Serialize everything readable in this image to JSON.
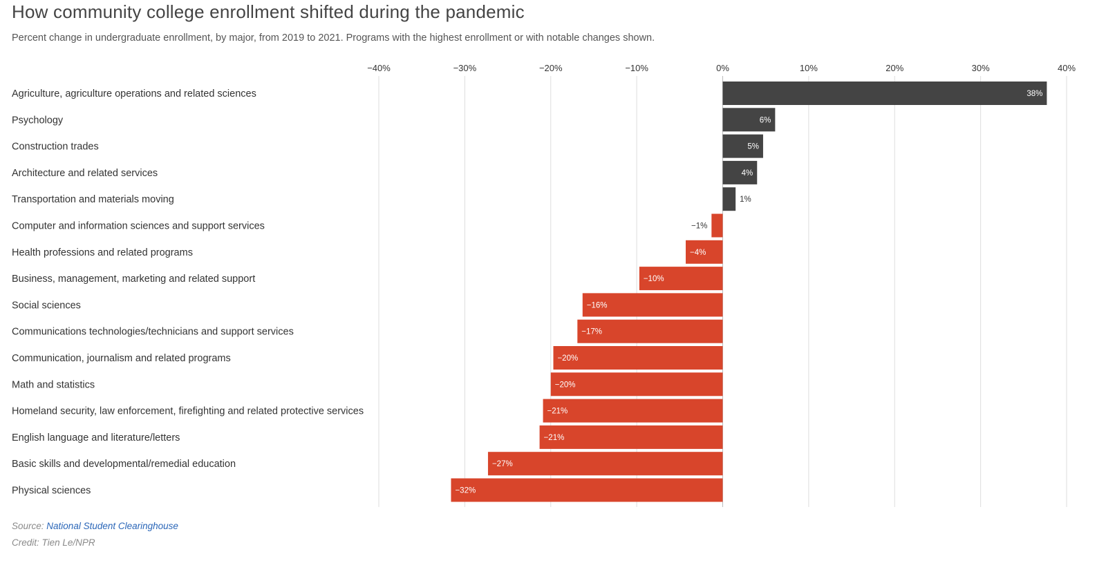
{
  "title": "How community college enrollment shifted during the pandemic",
  "subtitle": "Percent change in undergraduate enrollment, by major, from 2019 to 2021. Programs with the highest enrollment or with notable changes shown.",
  "footer": {
    "source_prefix": "Source:",
    "source_link": "National Student Clearinghouse",
    "credit": "Credit: Tien Le/NPR"
  },
  "colors": {
    "positive": "#444444",
    "negative": "#d8452b",
    "grid": "#dddddd",
    "label": "#333333"
  },
  "chart_data": {
    "type": "bar",
    "orientation": "horizontal",
    "xlim": [
      -40,
      40
    ],
    "ticks": [
      -40,
      -30,
      -20,
      -10,
      0,
      10,
      20,
      30,
      40
    ],
    "tick_labels": [
      "−40%",
      "−30%",
      "−20%",
      "−10%",
      "0%",
      "10%",
      "20%",
      "30%",
      "40%"
    ],
    "grid": true,
    "categories": [
      "Agriculture, agriculture operations and related sciences",
      "Psychology",
      "Construction trades",
      "Architecture and related services",
      "Transportation and materials moving",
      "Computer and information sciences and support services",
      "Health professions and related programs",
      "Business, management, marketing and related support",
      "Social sciences",
      "Communications technologies/technicians and support services",
      "Communication, journalism and related programs",
      "Math and statistics",
      "Homeland security, law enforcement, firefighting and related protective services",
      "English language and literature/letters",
      "Basic skills and developmental/remedial education",
      "Physical sciences"
    ],
    "values": [
      37.7,
      6.1,
      4.7,
      4.0,
      1.5,
      -1.3,
      -4.3,
      -9.7,
      -16.3,
      -16.9,
      -19.7,
      -20.0,
      -20.9,
      -21.3,
      -27.3,
      -31.6
    ],
    "value_labels": [
      "38%",
      "6%",
      "5%",
      "4%",
      "1%",
      "−1%",
      "−4%",
      "−10%",
      "−16%",
      "−17%",
      "−20%",
      "−20%",
      "−21%",
      "−21%",
      "−27%",
      "−32%"
    ]
  }
}
